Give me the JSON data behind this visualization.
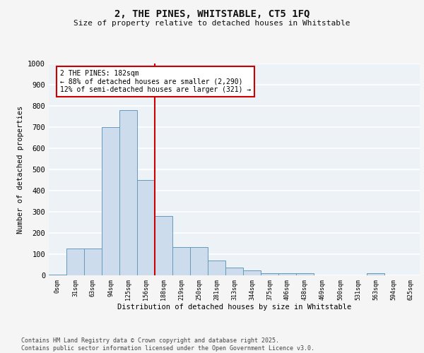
{
  "title1": "2, THE PINES, WHITSTABLE, CT5 1FQ",
  "title2": "Size of property relative to detached houses in Whitstable",
  "xlabel": "Distribution of detached houses by size in Whitstable",
  "ylabel": "Number of detached properties",
  "bar_color": "#ccdcec",
  "bar_edge_color": "#6699bb",
  "background_color": "#edf2f7",
  "grid_color": "#ffffff",
  "vline_color": "#cc0000",
  "vline_x_index": 6,
  "annotation_text": "2 THE PINES: 182sqm\n← 88% of detached houses are smaller (2,290)\n12% of semi-detached houses are larger (321) →",
  "annotation_box_color": "#ffffff",
  "annotation_box_edge": "#cc0000",
  "categories": [
    "0sqm",
    "31sqm",
    "63sqm",
    "94sqm",
    "125sqm",
    "156sqm",
    "188sqm",
    "219sqm",
    "250sqm",
    "281sqm",
    "313sqm",
    "344sqm",
    "375sqm",
    "406sqm",
    "438sqm",
    "469sqm",
    "500sqm",
    "531sqm",
    "563sqm",
    "594sqm",
    "625sqm"
  ],
  "values": [
    5,
    128,
    128,
    700,
    780,
    450,
    280,
    135,
    135,
    70,
    38,
    22,
    10,
    10,
    10,
    0,
    0,
    0,
    10,
    0,
    0
  ],
  "ylim": [
    0,
    1000
  ],
  "yticks": [
    0,
    100,
    200,
    300,
    400,
    500,
    600,
    700,
    800,
    900,
    1000
  ],
  "footer": "Contains HM Land Registry data © Crown copyright and database right 2025.\nContains public sector information licensed under the Open Government Licence v3.0.",
  "figsize": [
    6.0,
    5.0
  ],
  "dpi": 100
}
